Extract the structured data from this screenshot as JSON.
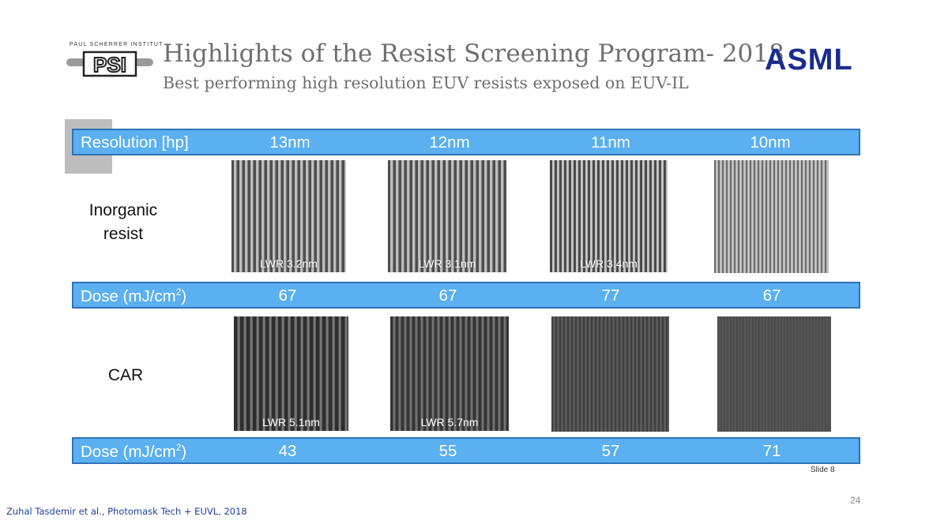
{
  "header": {
    "institute_text": "PAUL SCHERRER INSTITUT",
    "psi_logo_text": "PSI",
    "title": "Highlights of the Resist Screening Program- 2018",
    "subtitle": "Best performing high resolution EUV resists exposed on EUV-IL",
    "asml_logo_text": "ASML"
  },
  "resolution_bar": {
    "label": "Resolution [hp]",
    "values": [
      "13nm",
      "12nm",
      "11nm",
      "10nm"
    ]
  },
  "inorganic": {
    "label_line1": "Inorganic",
    "label_line2": "resist",
    "lwr": [
      "LWR 3.2nm",
      "LWR 3.1nm",
      "LWR 3.4nm",
      ""
    ]
  },
  "dose_bar_1": {
    "label": "Dose  (mJ/cm",
    "label_sup": "2",
    "label_end": ")",
    "values": [
      "67",
      "67",
      "77",
      "67"
    ]
  },
  "car": {
    "label": "CAR",
    "lwr": [
      "LWR 5.1nm",
      "LWR 5.7nm",
      "",
      ""
    ]
  },
  "dose_bar_2": {
    "label": "Dose  (mJ/cm",
    "label_sup": "2",
    "label_end": ")",
    "values": [
      "43",
      "55",
      "57",
      "71"
    ]
  },
  "footer": {
    "slide_label": "Slide 8",
    "page_number": "24",
    "citation": "Zuhal Tasdemir et al., Photomask Tech + EUVL, 2018"
  },
  "colors": {
    "bar_fill": "#5ab0f0",
    "bar_border": "#2f72b8",
    "title_gray": "#6f6f6f",
    "asml_blue": "#1a2c8c",
    "citation_blue": "#1f3f9f"
  }
}
